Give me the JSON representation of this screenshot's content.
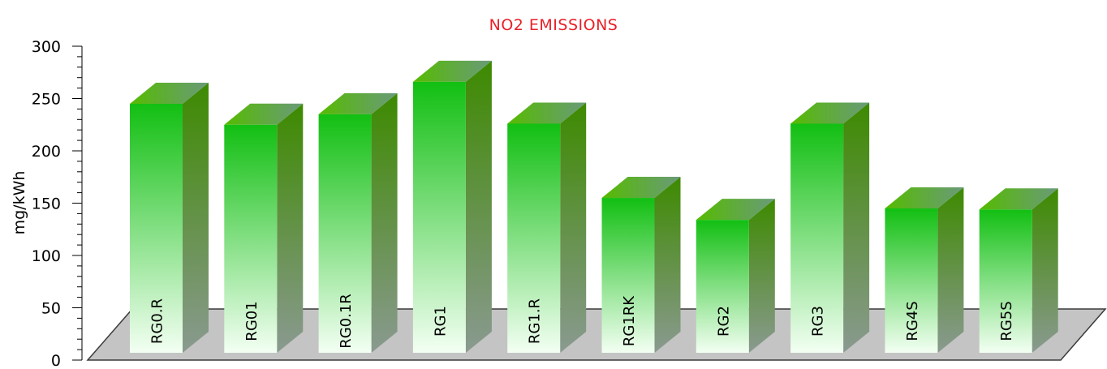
{
  "chart_data": {
    "type": "bar",
    "title": "NO2 EMISSIONS",
    "ylabel": "mg/kWh",
    "xlabel": "",
    "categories": [
      "RG0.R",
      "RG01",
      "RG0.1R",
      "RG1",
      "RG1.R",
      "RG1RK",
      "RG2",
      "RG3",
      "RG4S",
      "RG5S"
    ],
    "values": [
      245,
      225,
      235,
      266,
      226,
      155,
      134,
      226,
      145,
      144
    ],
    "ylim": [
      0,
      300
    ],
    "yticks": [
      "0",
      "50",
      "100",
      "150",
      "200",
      "250",
      "300"
    ],
    "grid": false,
    "three_d": true
  },
  "colors": {
    "title": "#e8202a",
    "bar_top": "#12bf12",
    "bar_bottom": "#f3fff3",
    "bar_side_top": "#3d8a00",
    "bar_side_bottom": "#8a9a90",
    "bar_cap_left": "#55bb00",
    "bar_cap_right": "#6a9a7a",
    "floor": "#c4c4c4"
  }
}
